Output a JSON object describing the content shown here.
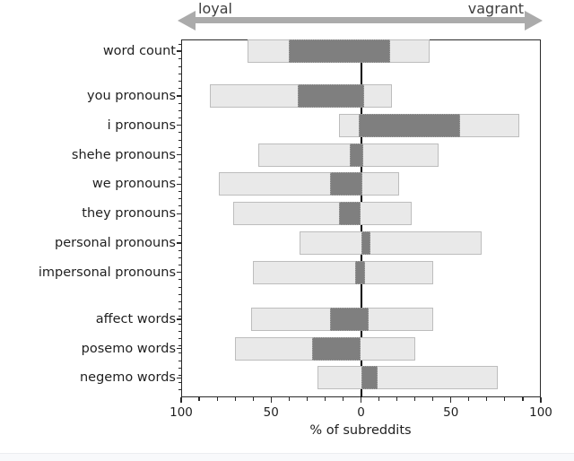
{
  "header": {
    "left_label": "loyal",
    "right_label": "vagrant",
    "arrow_color": "#ababab"
  },
  "chart_data": {
    "type": "bar",
    "subtype": "diverging-range-boxes",
    "title": "",
    "xlabel": "% of subreddits",
    "ylabel": "",
    "xlim": [
      -100,
      100
    ],
    "x_axis_note": "negative values extend toward 'loyal' (left), positive toward 'vagrant' (right); axis labels show absolute percentages",
    "x_tick_values": [
      -100,
      -50,
      0,
      50,
      100
    ],
    "x_tick_labels": [
      "100",
      "50",
      "0",
      "50",
      "100"
    ],
    "minor_tick_step_percent": 10,
    "grid": false,
    "zero_line": true,
    "legend": "none",
    "colors": {
      "outer_range_fill": "#e9e9e9",
      "outer_range_border": "#bdbdbd",
      "inner_box_fill": "#7f7f7f",
      "zero_line": "#000000",
      "arrow": "#ababab"
    },
    "groups": [
      {
        "rows": [
          {
            "label": "word count",
            "outer": [
              -63,
              38
            ],
            "inner": [
              -40,
              16
            ]
          }
        ]
      },
      {
        "rows": [
          {
            "label": "you pronouns",
            "outer": [
              -84,
              17
            ],
            "inner": [
              -35,
              2
            ]
          },
          {
            "label": "i pronouns",
            "outer": [
              -12,
              88
            ],
            "inner": [
              -1,
              55
            ]
          },
          {
            "label": "shehe pronouns",
            "outer": [
              -57,
              43
            ],
            "inner": [
              -6,
              1
            ]
          },
          {
            "label": "we pronouns",
            "outer": [
              -79,
              21
            ],
            "inner": [
              -17,
              1
            ]
          },
          {
            "label": "they pronouns",
            "outer": [
              -71,
              28
            ],
            "inner": [
              -12,
              0
            ]
          },
          {
            "label": "personal pronouns",
            "outer": [
              -34,
              67
            ],
            "inner": [
              0,
              5
            ]
          },
          {
            "label": "impersonal pronouns",
            "outer": [
              -60,
              40
            ],
            "inner": [
              -3,
              2
            ]
          }
        ]
      },
      {
        "rows": [
          {
            "label": "affect words",
            "outer": [
              -61,
              40
            ],
            "inner": [
              -17,
              4
            ]
          },
          {
            "label": "posemo words",
            "outer": [
              -70,
              30
            ],
            "inner": [
              -27,
              0
            ]
          },
          {
            "label": "negemo words",
            "outer": [
              -24,
              76
            ],
            "inner": [
              0,
              9
            ]
          }
        ]
      }
    ]
  }
}
